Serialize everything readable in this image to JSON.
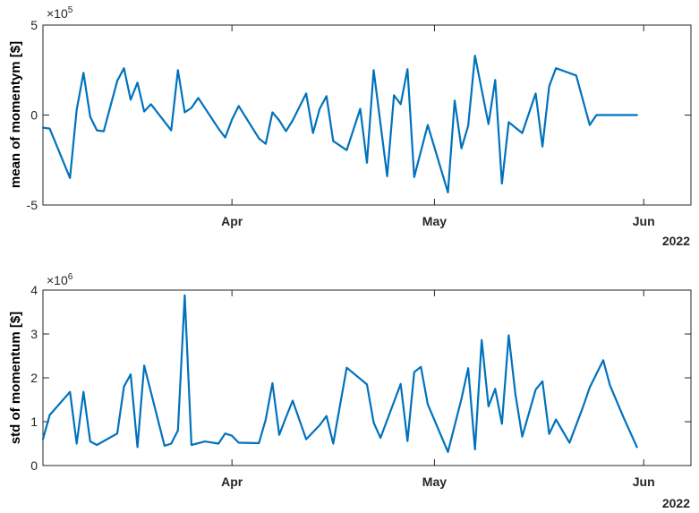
{
  "chart_data": [
    {
      "type": "line",
      "ylabel": "mean of momentym [$]",
      "y_exponent_label": "×10",
      "y_exponent": "5",
      "ylim": [
        -5,
        5
      ],
      "yticks": [
        -5,
        0,
        5
      ],
      "xlim": [
        "2022-03-04",
        "2022-06-08"
      ],
      "xticks": [
        {
          "date": "2022-04-01",
          "label": "Apr"
        },
        {
          "date": "2022-05-01",
          "label": "May"
        },
        {
          "date": "2022-06-01",
          "label": "Jun"
        }
      ],
      "year_label": "2022",
      "color": "#0072BD",
      "series": [
        {
          "x": [
            "2022-03-04",
            "2022-03-05",
            "2022-03-08",
            "2022-03-09",
            "2022-03-10",
            "2022-03-11",
            "2022-03-12",
            "2022-03-13",
            "2022-03-15",
            "2022-03-16",
            "2022-03-17",
            "2022-03-18",
            "2022-03-19",
            "2022-03-20",
            "2022-03-23",
            "2022-03-24",
            "2022-03-25",
            "2022-03-26",
            "2022-03-27",
            "2022-03-30",
            "2022-03-31",
            "2022-04-01",
            "2022-04-02",
            "2022-04-05",
            "2022-04-06",
            "2022-04-07",
            "2022-04-08",
            "2022-04-09",
            "2022-04-10",
            "2022-04-12",
            "2022-04-13",
            "2022-04-14",
            "2022-04-15",
            "2022-04-16",
            "2022-04-18",
            "2022-04-20",
            "2022-04-21",
            "2022-04-22",
            "2022-04-24",
            "2022-04-25",
            "2022-04-26",
            "2022-04-27",
            "2022-04-28",
            "2022-04-30",
            "2022-05-03",
            "2022-05-04",
            "2022-05-05",
            "2022-05-06",
            "2022-05-07",
            "2022-05-09",
            "2022-05-10",
            "2022-05-11",
            "2022-05-12",
            "2022-05-14",
            "2022-05-16",
            "2022-05-17",
            "2022-05-18",
            "2022-05-19",
            "2022-05-22",
            "2022-05-24",
            "2022-05-25",
            "2022-05-26",
            "2022-05-27",
            "2022-05-29",
            "2022-05-30",
            "2022-05-31"
          ],
          "y": [
            -0.7,
            -0.75,
            -3.5,
            0.3,
            2.35,
            -0.1,
            -0.85,
            -0.9,
            1.9,
            2.6,
            0.85,
            1.8,
            0.2,
            0.6,
            -0.85,
            2.5,
            0.15,
            0.4,
            0.95,
            -0.75,
            -1.25,
            -0.25,
            0.5,
            -1.3,
            -1.6,
            0.15,
            -0.3,
            -0.9,
            -0.3,
            1.2,
            -1.0,
            0.35,
            1.05,
            -1.45,
            -1.95,
            0.35,
            -2.65,
            2.5,
            -3.4,
            1.1,
            0.6,
            2.55,
            -3.45,
            -0.55,
            -4.3,
            0.8,
            -1.85,
            -0.6,
            3.3,
            -0.5,
            1.95,
            -3.8,
            -0.4,
            -1.0,
            1.2,
            -1.75,
            1.6,
            2.6,
            2.2,
            -0.55,
            0.0,
            0.0,
            0.0,
            0.0,
            0.0,
            0.0
          ]
        }
      ]
    },
    {
      "type": "line",
      "ylabel": "std of momentum [$]",
      "y_exponent_label": "×10",
      "y_exponent": "6",
      "ylim": [
        0,
        4
      ],
      "yticks": [
        0,
        1,
        2,
        3,
        4
      ],
      "xlim": [
        "2022-03-04",
        "2022-06-08"
      ],
      "xticks": [
        {
          "date": "2022-04-01",
          "label": "Apr"
        },
        {
          "date": "2022-05-01",
          "label": "May"
        },
        {
          "date": "2022-06-01",
          "label": "Jun"
        }
      ],
      "year_label": "2022",
      "color": "#0072BD",
      "series": [
        {
          "x": [
            "2022-03-04",
            "2022-03-05",
            "2022-03-08",
            "2022-03-09",
            "2022-03-10",
            "2022-03-11",
            "2022-03-12",
            "2022-03-15",
            "2022-03-16",
            "2022-03-17",
            "2022-03-18",
            "2022-03-19",
            "2022-03-22",
            "2022-03-23",
            "2022-03-24",
            "2022-03-25",
            "2022-03-26",
            "2022-03-28",
            "2022-03-30",
            "2022-03-31",
            "2022-04-01",
            "2022-04-02",
            "2022-04-05",
            "2022-04-06",
            "2022-04-07",
            "2022-04-08",
            "2022-04-09",
            "2022-04-10",
            "2022-04-12",
            "2022-04-14",
            "2022-04-15",
            "2022-04-16",
            "2022-04-18",
            "2022-04-21",
            "2022-04-22",
            "2022-04-23",
            "2022-04-26",
            "2022-04-27",
            "2022-04-28",
            "2022-04-29",
            "2022-04-30",
            "2022-05-03",
            "2022-05-05",
            "2022-05-06",
            "2022-05-07",
            "2022-05-08",
            "2022-05-09",
            "2022-05-10",
            "2022-05-11",
            "2022-05-12",
            "2022-05-13",
            "2022-05-14",
            "2022-05-16",
            "2022-05-17",
            "2022-05-18",
            "2022-05-19",
            "2022-05-21",
            "2022-05-23",
            "2022-05-24",
            "2022-05-26",
            "2022-05-27",
            "2022-05-29",
            "2022-05-31"
          ],
          "y": [
            0.6,
            1.15,
            1.68,
            0.5,
            1.68,
            0.55,
            0.47,
            0.73,
            1.8,
            2.08,
            0.42,
            2.28,
            0.45,
            0.5,
            0.8,
            3.88,
            0.47,
            0.55,
            0.5,
            0.73,
            0.68,
            0.52,
            0.51,
            1.05,
            1.88,
            0.7,
            1.1,
            1.48,
            0.6,
            0.92,
            1.13,
            0.5,
            2.23,
            1.85,
            0.98,
            0.63,
            1.86,
            0.56,
            2.13,
            2.25,
            1.4,
            0.31,
            1.52,
            2.22,
            0.37,
            2.86,
            1.35,
            1.75,
            0.95,
            2.97,
            1.62,
            0.66,
            1.73,
            1.92,
            0.72,
            1.05,
            0.52,
            1.33,
            1.78,
            2.4,
            1.83,
            1.1,
            0.42
          ]
        }
      ]
    }
  ]
}
